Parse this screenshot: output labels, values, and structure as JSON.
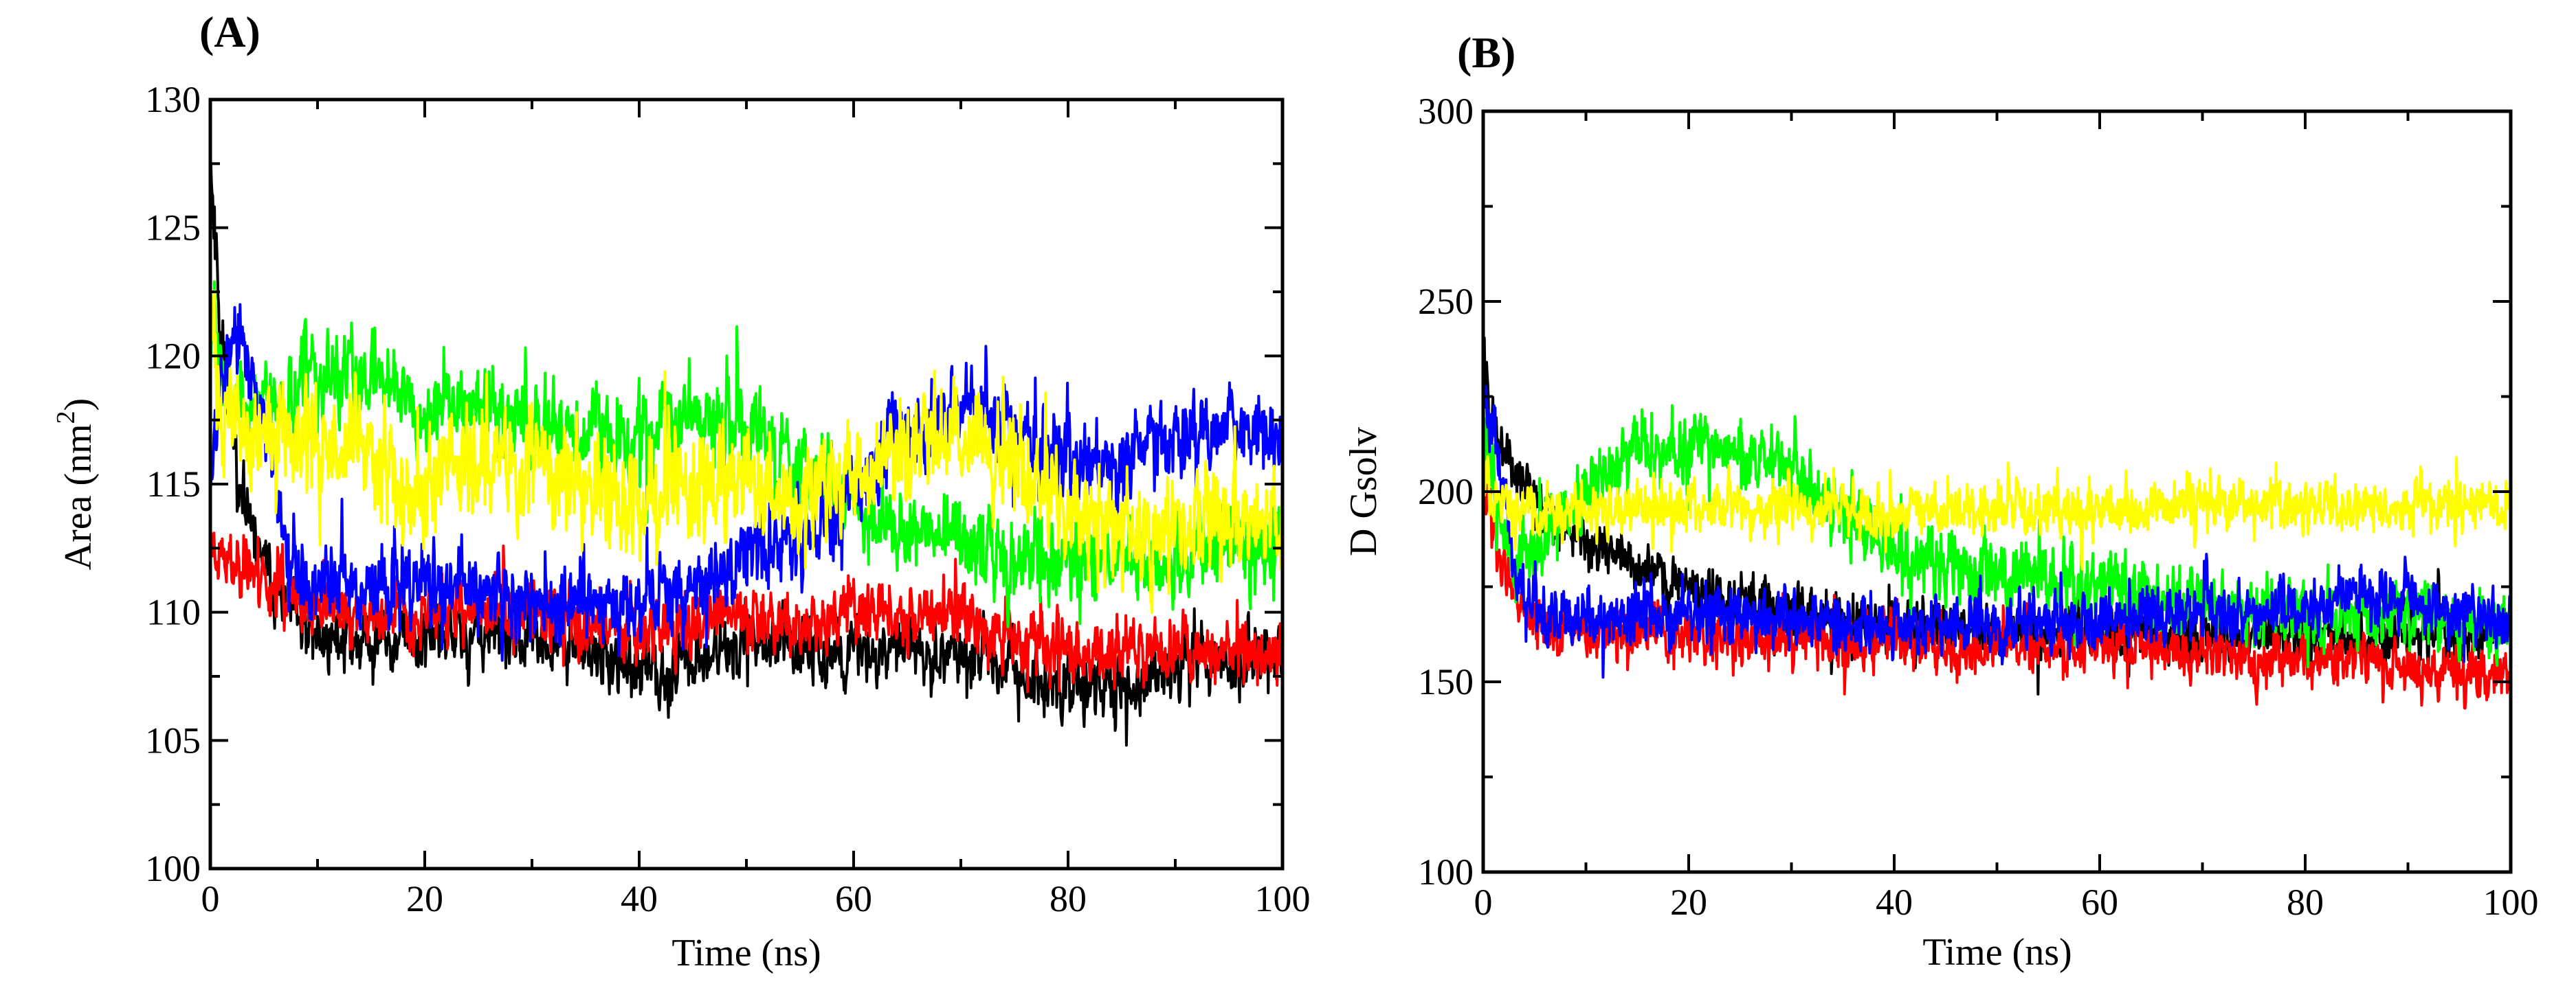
{
  "chart_data": [
    {
      "type": "line",
      "panel_label": "(A)",
      "title": "",
      "xlabel": "Time (ns)",
      "ylabel": "Area (nm",
      "ylabel_superscript": "2",
      "ylabel_suffix": ")",
      "xlim": [
        0,
        100
      ],
      "ylim": [
        100,
        130
      ],
      "xticks": [
        0,
        20,
        40,
        60,
        80,
        100
      ],
      "yticks": [
        100,
        105,
        110,
        115,
        120,
        125,
        130
      ],
      "grid": false,
      "draw_order": [
        "black",
        "red",
        "green",
        "blue",
        "yellow"
      ],
      "series": [
        {
          "name": "black",
          "color": "#000000",
          "noise": 1.6,
          "seed": 11,
          "x": [
            0,
            1,
            3,
            6,
            9,
            12,
            16,
            20,
            25,
            30,
            35,
            40,
            45,
            50,
            55,
            60,
            65,
            70,
            75,
            80,
            85,
            90,
            95,
            100
          ],
          "values": [
            128,
            121,
            114,
            111,
            109,
            109,
            109,
            109,
            109,
            109,
            108.5,
            107.5,
            108,
            109,
            108.5,
            108.5,
            108.5,
            108.5,
            107.5,
            107,
            107,
            108,
            108,
            108.5
          ]
        },
        {
          "name": "red",
          "color": "#ff0000",
          "noise": 1.6,
          "seed": 23,
          "x": [
            0,
            1,
            3,
            6,
            9,
            12,
            16,
            20,
            25,
            30,
            35,
            40,
            45,
            50,
            55,
            60,
            65,
            70,
            75,
            80,
            85,
            90,
            95,
            100
          ],
          "values": [
            113,
            112,
            112,
            111,
            110,
            110,
            110,
            110,
            110,
            110,
            109.5,
            109.5,
            109.5,
            110,
            109.5,
            110,
            110,
            110,
            109,
            108.5,
            108.5,
            108.5,
            108.5,
            108.5
          ]
        },
        {
          "name": "green",
          "color": "#00ff00",
          "noise": 2.1,
          "seed": 37,
          "x": [
            0,
            1,
            3,
            6,
            9,
            12,
            16,
            20,
            25,
            30,
            35,
            40,
            45,
            50,
            55,
            60,
            65,
            70,
            75,
            80,
            85,
            90,
            95,
            100
          ],
          "values": [
            122,
            119,
            118,
            118,
            119,
            119,
            119.5,
            118,
            118,
            117.5,
            117,
            117,
            117.5,
            117,
            116,
            114,
            113,
            113,
            112,
            112,
            112,
            112,
            112.5,
            113
          ]
        },
        {
          "name": "blue",
          "color": "#0000ff",
          "noise": 2.0,
          "seed": 53,
          "x": [
            0,
            1,
            3,
            5,
            7,
            9,
            12,
            16,
            20,
            25,
            30,
            35,
            40,
            45,
            50,
            55,
            60,
            65,
            70,
            75,
            80,
            85,
            90,
            95,
            100
          ],
          "values": [
            116,
            119,
            121,
            117,
            113,
            111,
            111,
            111,
            111,
            111,
            110.5,
            110.5,
            110.5,
            111,
            112,
            113,
            115,
            117,
            118,
            117,
            116,
            116,
            117,
            117,
            117
          ]
        },
        {
          "name": "yellow",
          "color": "#ffff00",
          "noise": 2.7,
          "seed": 71,
          "x": [
            0,
            1,
            3,
            6,
            9,
            12,
            16,
            20,
            25,
            30,
            35,
            40,
            45,
            50,
            55,
            60,
            65,
            70,
            75,
            80,
            85,
            90,
            95,
            100
          ],
          "values": [
            121,
            118,
            117,
            117,
            117,
            116,
            116,
            115,
            115.5,
            115.5,
            115,
            114.5,
            115,
            115.5,
            114.5,
            115.5,
            116,
            117,
            116,
            114,
            113,
            113,
            113.5,
            114
          ]
        }
      ]
    },
    {
      "type": "line",
      "panel_label": "(B)",
      "title": "",
      "xlabel": "Time (ns)",
      "ylabel": "D Gsolv",
      "xlim": [
        0,
        100
      ],
      "ylim": [
        100,
        300
      ],
      "xticks": [
        0,
        20,
        40,
        60,
        80,
        100
      ],
      "yticks": [
        100,
        150,
        200,
        250,
        300
      ],
      "grid": false,
      "draw_order": [
        "black",
        "red",
        "green",
        "blue",
        "yellow"
      ],
      "series": [
        {
          "name": "black",
          "color": "#000000",
          "noise": 9,
          "seed": 101,
          "x": [
            0,
            1,
            3,
            5,
            8,
            12,
            20,
            30,
            40,
            50,
            60,
            70,
            80,
            90,
            100
          ],
          "values": [
            240,
            215,
            205,
            198,
            190,
            185,
            175,
            168,
            165,
            163,
            162,
            162,
            163,
            163,
            162
          ]
        },
        {
          "name": "red",
          "color": "#ff0000",
          "noise": 9,
          "seed": 113,
          "x": [
            0,
            1,
            3,
            5,
            10,
            20,
            30,
            40,
            50,
            60,
            65,
            70,
            75,
            80,
            85,
            90,
            95,
            100
          ],
          "values": [
            205,
            190,
            172,
            165,
            163,
            162,
            161,
            160,
            159,
            160,
            160,
            158,
            157,
            157,
            156,
            154,
            152,
            153
          ]
        },
        {
          "name": "green",
          "color": "#00ff00",
          "noise": 12,
          "seed": 127,
          "x": [
            0,
            1,
            3,
            5,
            10,
            15,
            20,
            25,
            30,
            35,
            40,
            50,
            60,
            70,
            80,
            90,
            100
          ],
          "values": [
            225,
            200,
            180,
            185,
            200,
            210,
            212,
            210,
            205,
            195,
            185,
            180,
            175,
            170,
            168,
            166,
            165
          ]
        },
        {
          "name": "blue",
          "color": "#0000ff",
          "noise": 10,
          "seed": 139,
          "x": [
            0,
            1,
            2,
            3,
            5,
            10,
            20,
            30,
            40,
            50,
            60,
            70,
            80,
            85,
            90,
            95,
            100
          ],
          "values": [
            225,
            215,
            200,
            180,
            168,
            168,
            167,
            166,
            165,
            165,
            166,
            168,
            170,
            174,
            172,
            168,
            166
          ]
        },
        {
          "name": "yellow",
          "color": "#ffff00",
          "noise": 9,
          "seed": 151,
          "x": [
            0,
            1,
            3,
            5,
            10,
            20,
            30,
            40,
            50,
            60,
            70,
            80,
            90,
            100
          ],
          "values": [
            205,
            197,
            195,
            195,
            196,
            197,
            195,
            194,
            195,
            196,
            197,
            197,
            196,
            198
          ]
        }
      ]
    }
  ]
}
